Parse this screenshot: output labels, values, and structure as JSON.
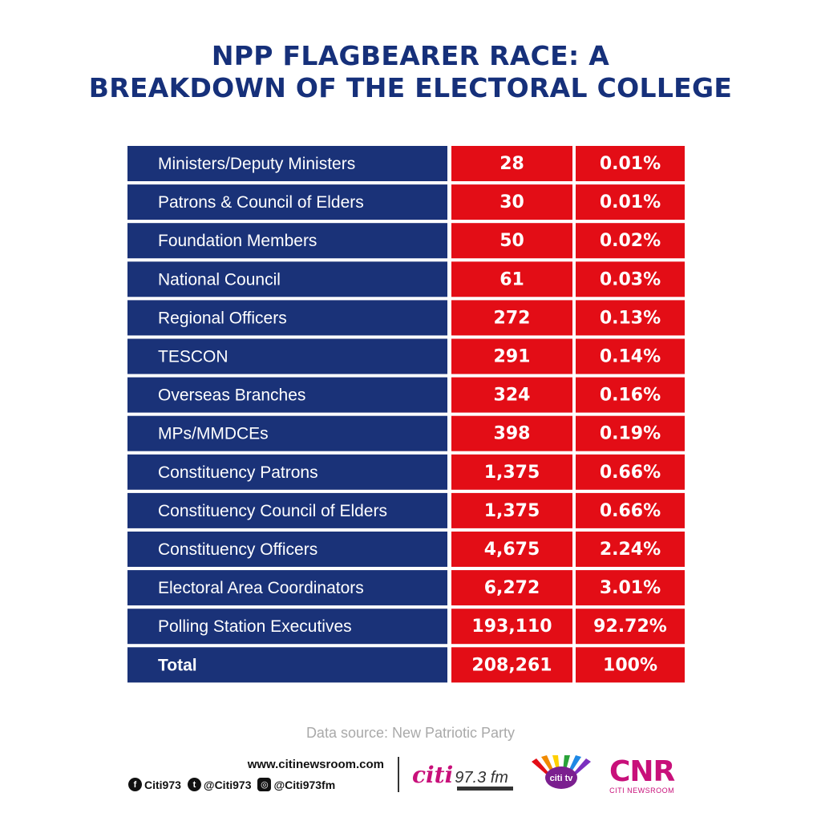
{
  "title_lines": [
    "NPP FLAGBEARER RACE: A",
    "BREAKDOWN OF THE ELECTORAL COLLEGE"
  ],
  "chart_data": {
    "type": "table",
    "title": "NPP FLAGBEARER RACE: A BREAKDOWN OF THE ELECTORAL COLLEGE",
    "rows": [
      {
        "category": "Ministers/Deputy Ministers",
        "count": "28",
        "percent": "0.01%"
      },
      {
        "category": "Patrons & Council of Elders",
        "count": "30",
        "percent": "0.01%"
      },
      {
        "category": "Foundation Members",
        "count": "50",
        "percent": "0.02%"
      },
      {
        "category": "National Council",
        "count": "61",
        "percent": "0.03%"
      },
      {
        "category": "Regional Officers",
        "count": "272",
        "percent": "0.13%"
      },
      {
        "category": "TESCON",
        "count": "291",
        "percent": "0.14%"
      },
      {
        "category": "Overseas Branches",
        "count": "324",
        "percent": "0.16%"
      },
      {
        "category": "MPs/MMDCEs",
        "count": "398",
        "percent": "0.19%"
      },
      {
        "category": "Constituency Patrons",
        "count": "1,375",
        "percent": "0.66%"
      },
      {
        "category": "Constituency Council of Elders",
        "count": "1,375",
        "percent": "0.66%"
      },
      {
        "category": "Constituency Officers",
        "count": "4,675",
        "percent": "2.24%"
      },
      {
        "category": "Electoral Area Coordinators",
        "count": "6,272",
        "percent": "3.01%"
      },
      {
        "category": "Polling Station Executives",
        "count": "193,110",
        "percent": "92.72%"
      }
    ],
    "total": {
      "category": "Total",
      "count": "208,261",
      "percent": "100%"
    }
  },
  "colors": {
    "title": "#16307a",
    "label_cell": "#1a3278",
    "value_cell": "#e30d16",
    "source_text": "#a9a9a9"
  },
  "source": "Data source: New Patriotic Party",
  "footer": {
    "website": "www.citinewsroom.com",
    "socials": [
      {
        "icon": "facebook-icon",
        "glyph": "f",
        "handle": "Citi973"
      },
      {
        "icon": "twitter-icon",
        "glyph": "t",
        "handle": "@Citi973"
      },
      {
        "icon": "instagram-icon",
        "glyph": "◎",
        "handle": "@Citi973fm"
      }
    ],
    "logos": {
      "citi_brand": "citi",
      "citi_freq": "97.3 fm",
      "tv_text": "citi tv",
      "cnr": "CNR",
      "cnr_sub": "CITI NEWSROOM"
    }
  }
}
